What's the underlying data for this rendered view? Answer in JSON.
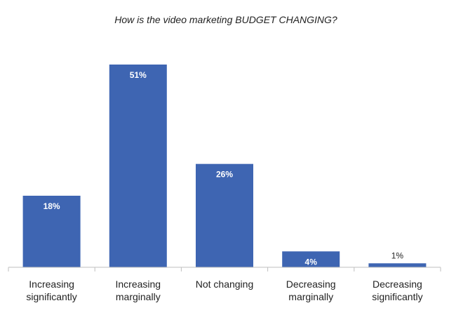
{
  "chart_data": {
    "type": "bar",
    "title": "How is the video marketing BUDGET CHANGING?",
    "categories": [
      [
        "Increasing",
        "significantly"
      ],
      [
        "Increasing",
        "marginally"
      ],
      [
        "Not changing"
      ],
      [
        "Decreasing",
        "marginally"
      ],
      [
        "Decreasing",
        "significantly"
      ]
    ],
    "values": [
      18,
      51,
      26,
      4,
      1
    ],
    "data_labels": [
      "18%",
      "51%",
      "26%",
      "4%",
      "1%"
    ],
    "unit": "%",
    "ylim": [
      0,
      51
    ],
    "grid": false,
    "legend": "none",
    "colors": {
      "bar": "#3e65b2",
      "axis": "#bfbfbf"
    }
  }
}
